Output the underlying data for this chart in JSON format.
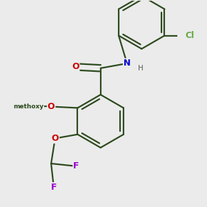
{
  "background_color": "#ebebeb",
  "bond_color": "#2d4a1e",
  "bond_width": 1.6,
  "atom_colors": {
    "O": "#cc0000",
    "N": "#0000cc",
    "F": "#9900cc",
    "Cl": "#66aa44",
    "C": "#2d4a1e"
  },
  "figsize": [
    3.0,
    3.0
  ],
  "dpi": 100,
  "s": 0.18
}
